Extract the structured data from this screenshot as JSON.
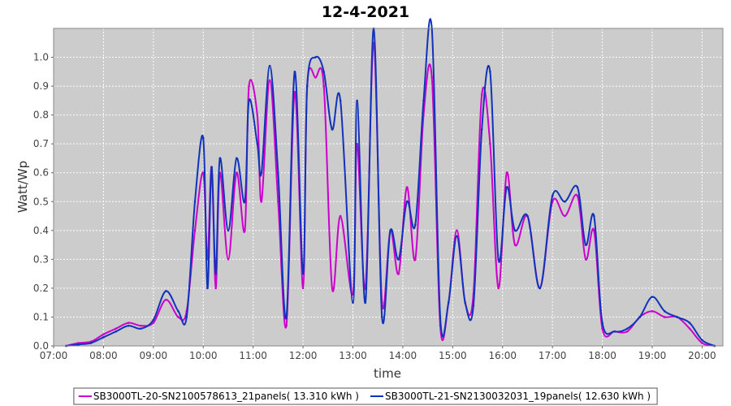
{
  "chart_data": {
    "type": "line",
    "title": "12-4-2021",
    "xlabel": "time",
    "ylabel": "Watt/Wp",
    "xlim": [
      "07:00",
      "20:25"
    ],
    "ylim": [
      0,
      1.1
    ],
    "grid": true,
    "legend_position": "bottom",
    "x_ticks": [
      "07:00",
      "08:00",
      "09:00",
      "10:00",
      "11:00",
      "12:00",
      "13:00",
      "14:00",
      "15:00",
      "16:00",
      "17:00",
      "18:00",
      "19:00",
      "20:00"
    ],
    "y_ticks": [
      "0.0",
      "0.1",
      "0.2",
      "0.3",
      "0.4",
      "0.5",
      "0.6",
      "0.7",
      "0.8",
      "0.9",
      "1.0"
    ],
    "series": [
      {
        "name": "SB3000TL-20-SN2100578613_21panels( 13.310 kWh )",
        "color": "#cc00cc",
        "points": [
          [
            "07:15",
            0.0
          ],
          [
            "07:30",
            0.01
          ],
          [
            "07:45",
            0.015
          ],
          [
            "08:00",
            0.04
          ],
          [
            "08:15",
            0.06
          ],
          [
            "08:30",
            0.08
          ],
          [
            "08:45",
            0.07
          ],
          [
            "09:00",
            0.08
          ],
          [
            "09:15",
            0.16
          ],
          [
            "09:30",
            0.1
          ],
          [
            "09:40",
            0.12
          ],
          [
            "09:50",
            0.4
          ],
          [
            "10:00",
            0.6
          ],
          [
            "10:05",
            0.3
          ],
          [
            "10:10",
            0.62
          ],
          [
            "10:15",
            0.2
          ],
          [
            "10:20",
            0.6
          ],
          [
            "10:30",
            0.3
          ],
          [
            "10:40",
            0.6
          ],
          [
            "10:50",
            0.4
          ],
          [
            "10:55",
            0.9
          ],
          [
            "11:05",
            0.8
          ],
          [
            "11:10",
            0.5
          ],
          [
            "11:20",
            0.92
          ],
          [
            "11:30",
            0.5
          ],
          [
            "11:40",
            0.07
          ],
          [
            "11:50",
            0.88
          ],
          [
            "12:00",
            0.2
          ],
          [
            "12:05",
            0.9
          ],
          [
            "12:15",
            0.93
          ],
          [
            "12:25",
            0.9
          ],
          [
            "12:35",
            0.2
          ],
          [
            "12:45",
            0.45
          ],
          [
            "13:00",
            0.18
          ],
          [
            "13:05",
            0.7
          ],
          [
            "13:15",
            0.2
          ],
          [
            "13:25",
            1.05
          ],
          [
            "13:35",
            0.15
          ],
          [
            "13:45",
            0.4
          ],
          [
            "13:55",
            0.25
          ],
          [
            "14:05",
            0.55
          ],
          [
            "14:15",
            0.3
          ],
          [
            "14:25",
            0.8
          ],
          [
            "14:35",
            0.93
          ],
          [
            "14:45",
            0.07
          ],
          [
            "14:55",
            0.15
          ],
          [
            "15:05",
            0.4
          ],
          [
            "15:15",
            0.15
          ],
          [
            "15:25",
            0.18
          ],
          [
            "15:35",
            0.87
          ],
          [
            "15:45",
            0.7
          ],
          [
            "15:55",
            0.2
          ],
          [
            "16:05",
            0.6
          ],
          [
            "16:15",
            0.35
          ],
          [
            "16:30",
            0.45
          ],
          [
            "16:45",
            0.2
          ],
          [
            "17:00",
            0.5
          ],
          [
            "17:15",
            0.45
          ],
          [
            "17:30",
            0.52
          ],
          [
            "17:40",
            0.3
          ],
          [
            "17:50",
            0.4
          ],
          [
            "18:00",
            0.06
          ],
          [
            "18:15",
            0.05
          ],
          [
            "18:30",
            0.05
          ],
          [
            "18:45",
            0.1
          ],
          [
            "19:00",
            0.12
          ],
          [
            "19:15",
            0.1
          ],
          [
            "19:30",
            0.1
          ],
          [
            "19:45",
            0.06
          ],
          [
            "20:00",
            0.01
          ],
          [
            "20:15",
            0.0
          ]
        ]
      },
      {
        "name": "SB3000TL-21-SN2130032031_19panels( 12.630 kWh )",
        "color": "#1133bb",
        "points": [
          [
            "07:15",
            0.0
          ],
          [
            "07:30",
            0.005
          ],
          [
            "07:45",
            0.01
          ],
          [
            "08:00",
            0.03
          ],
          [
            "08:15",
            0.05
          ],
          [
            "08:30",
            0.07
          ],
          [
            "08:45",
            0.06
          ],
          [
            "09:00",
            0.09
          ],
          [
            "09:15",
            0.19
          ],
          [
            "09:30",
            0.12
          ],
          [
            "09:40",
            0.1
          ],
          [
            "09:50",
            0.5
          ],
          [
            "10:00",
            0.72
          ],
          [
            "10:05",
            0.2
          ],
          [
            "10:10",
            0.62
          ],
          [
            "10:15",
            0.25
          ],
          [
            "10:20",
            0.65
          ],
          [
            "10:30",
            0.4
          ],
          [
            "10:40",
            0.65
          ],
          [
            "10:50",
            0.5
          ],
          [
            "10:55",
            0.85
          ],
          [
            "11:05",
            0.7
          ],
          [
            "11:10",
            0.6
          ],
          [
            "11:20",
            0.97
          ],
          [
            "11:30",
            0.6
          ],
          [
            "11:40",
            0.1
          ],
          [
            "11:50",
            0.95
          ],
          [
            "12:00",
            0.25
          ],
          [
            "12:05",
            0.9
          ],
          [
            "12:15",
            1.0
          ],
          [
            "12:25",
            0.95
          ],
          [
            "12:35",
            0.75
          ],
          [
            "12:45",
            0.85
          ],
          [
            "13:00",
            0.15
          ],
          [
            "13:05",
            0.85
          ],
          [
            "13:15",
            0.15
          ],
          [
            "13:25",
            1.1
          ],
          [
            "13:35",
            0.1
          ],
          [
            "13:45",
            0.4
          ],
          [
            "13:55",
            0.3
          ],
          [
            "14:05",
            0.5
          ],
          [
            "14:15",
            0.42
          ],
          [
            "14:25",
            0.85
          ],
          [
            "14:35",
            1.1
          ],
          [
            "14:45",
            0.1
          ],
          [
            "14:55",
            0.15
          ],
          [
            "15:05",
            0.38
          ],
          [
            "15:15",
            0.15
          ],
          [
            "15:25",
            0.14
          ],
          [
            "15:35",
            0.75
          ],
          [
            "15:45",
            0.95
          ],
          [
            "15:55",
            0.3
          ],
          [
            "16:05",
            0.55
          ],
          [
            "16:15",
            0.4
          ],
          [
            "16:30",
            0.45
          ],
          [
            "16:45",
            0.2
          ],
          [
            "17:00",
            0.52
          ],
          [
            "17:15",
            0.5
          ],
          [
            "17:30",
            0.55
          ],
          [
            "17:40",
            0.35
          ],
          [
            "17:50",
            0.45
          ],
          [
            "18:00",
            0.08
          ],
          [
            "18:15",
            0.05
          ],
          [
            "18:30",
            0.06
          ],
          [
            "18:45",
            0.1
          ],
          [
            "19:00",
            0.17
          ],
          [
            "19:15",
            0.12
          ],
          [
            "19:30",
            0.1
          ],
          [
            "19:45",
            0.08
          ],
          [
            "20:00",
            0.02
          ],
          [
            "20:15",
            0.0
          ]
        ]
      }
    ]
  }
}
